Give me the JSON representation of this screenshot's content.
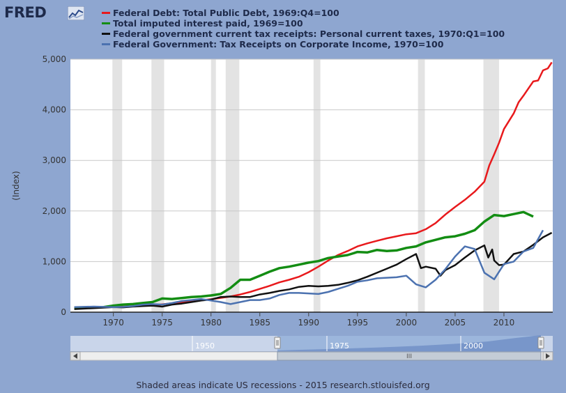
{
  "logo": {
    "text": "FRED",
    "icon": "chart-line-icon"
  },
  "footer": {
    "text": "Shaded areas indicate US recessions - 2015 research.stlouisfed.org"
  },
  "navigator": {
    "labels": [
      "1950",
      "1975",
      "2000"
    ],
    "grip": "III"
  },
  "colors": {
    "background": "#8ea6d0",
    "plot": "#ffffff",
    "recession": "#e3e3e3"
  },
  "chart_data": {
    "type": "line",
    "title": "",
    "xlabel": "",
    "ylabel": "(Index)",
    "xlim": [
      1965.6,
      2015.0
    ],
    "ylim": [
      0,
      5000
    ],
    "x_ticks": [
      1970,
      1975,
      1980,
      1985,
      1990,
      1995,
      2000,
      2005,
      2010
    ],
    "y_ticks": [
      0,
      1000,
      2000,
      3000,
      4000,
      5000
    ],
    "y_tick_labels": [
      "0",
      "1,000",
      "2,000",
      "3,000",
      "4,000",
      "5,000"
    ],
    "grid": "horizontal",
    "legend_position": "top",
    "recessions": [
      [
        1969.9,
        1970.9
      ],
      [
        1973.9,
        1975.2
      ],
      [
        1980.0,
        1980.5
      ],
      [
        1981.5,
        1982.9
      ],
      [
        1990.5,
        1991.2
      ],
      [
        2001.2,
        2001.9
      ],
      [
        2007.9,
        2009.5
      ]
    ],
    "series": [
      {
        "name": "Federal Debt: Total Public Debt, 1969:Q4=100",
        "color": "#e8191c",
        "width": 2.5,
        "points": [
          [
            1966,
            96
          ],
          [
            1968,
            98
          ],
          [
            1970,
            100
          ],
          [
            1972,
            118
          ],
          [
            1974,
            135
          ],
          [
            1976,
            175
          ],
          [
            1978,
            220
          ],
          [
            1980,
            255
          ],
          [
            1982,
            310
          ],
          [
            1983,
            350
          ],
          [
            1984,
            400
          ],
          [
            1985,
            460
          ],
          [
            1986,
            520
          ],
          [
            1987,
            590
          ],
          [
            1988,
            640
          ],
          [
            1989,
            700
          ],
          [
            1990,
            790
          ],
          [
            1991,
            900
          ],
          [
            1992,
            1020
          ],
          [
            1993,
            1130
          ],
          [
            1994,
            1210
          ],
          [
            1995,
            1300
          ],
          [
            1996,
            1360
          ],
          [
            1997,
            1410
          ],
          [
            1998,
            1460
          ],
          [
            1999,
            1500
          ],
          [
            2000,
            1540
          ],
          [
            2001,
            1560
          ],
          [
            2002,
            1640
          ],
          [
            2003,
            1760
          ],
          [
            2004,
            1930
          ],
          [
            2005,
            2080
          ],
          [
            2006,
            2220
          ],
          [
            2007,
            2380
          ],
          [
            2008,
            2580
          ],
          [
            2008.5,
            2900
          ],
          [
            2009,
            3120
          ],
          [
            2009.5,
            3350
          ],
          [
            2010,
            3620
          ],
          [
            2011,
            3930
          ],
          [
            2011.5,
            4150
          ],
          [
            2012,
            4280
          ],
          [
            2012.5,
            4420
          ],
          [
            2013,
            4560
          ],
          [
            2013.5,
            4580
          ],
          [
            2014,
            4780
          ],
          [
            2014.5,
            4820
          ],
          [
            2014.9,
            4940
          ]
        ]
      },
      {
        "name": "Total imputed interest paid, 1969=100",
        "color": "#138d13",
        "width": 3.5,
        "points": [
          [
            1966,
            85
          ],
          [
            1968,
            95
          ],
          [
            1969,
            100
          ],
          [
            1970,
            130
          ],
          [
            1971,
            150
          ],
          [
            1972,
            160
          ],
          [
            1973,
            180
          ],
          [
            1974,
            200
          ],
          [
            1975,
            270
          ],
          [
            1976,
            260
          ],
          [
            1977,
            280
          ],
          [
            1978,
            300
          ],
          [
            1979,
            310
          ],
          [
            1980,
            330
          ],
          [
            1981,
            360
          ],
          [
            1982,
            480
          ],
          [
            1983,
            640
          ],
          [
            1984,
            640
          ],
          [
            1985,
            720
          ],
          [
            1986,
            800
          ],
          [
            1987,
            870
          ],
          [
            1988,
            900
          ],
          [
            1989,
            940
          ],
          [
            1990,
            980
          ],
          [
            1991,
            1010
          ],
          [
            1992,
            1070
          ],
          [
            1993,
            1100
          ],
          [
            1994,
            1130
          ],
          [
            1995,
            1190
          ],
          [
            1996,
            1180
          ],
          [
            1997,
            1230
          ],
          [
            1998,
            1210
          ],
          [
            1999,
            1220
          ],
          [
            2000,
            1270
          ],
          [
            2001,
            1300
          ],
          [
            2002,
            1380
          ],
          [
            2003,
            1430
          ],
          [
            2004,
            1480
          ],
          [
            2005,
            1500
          ],
          [
            2006,
            1550
          ],
          [
            2007,
            1620
          ],
          [
            2008,
            1790
          ],
          [
            2009,
            1920
          ],
          [
            2010,
            1900
          ],
          [
            2011,
            1940
          ],
          [
            2012,
            1980
          ],
          [
            2013,
            1890
          ]
        ]
      },
      {
        "name": "Federal government current tax receipts: Personal current taxes, 1970:Q1=100",
        "color": "#111111",
        "width": 2.5,
        "points": [
          [
            1966,
            60
          ],
          [
            1968,
            80
          ],
          [
            1970,
            100
          ],
          [
            1971,
            95
          ],
          [
            1972,
            110
          ],
          [
            1973,
            120
          ],
          [
            1974,
            130
          ],
          [
            1975,
            110
          ],
          [
            1976,
            150
          ],
          [
            1977,
            170
          ],
          [
            1978,
            200
          ],
          [
            1979,
            230
          ],
          [
            1980,
            250
          ],
          [
            1981,
            300
          ],
          [
            1982,
            310
          ],
          [
            1983,
            300
          ],
          [
            1984,
            300
          ],
          [
            1985,
            350
          ],
          [
            1986,
            380
          ],
          [
            1987,
            420
          ],
          [
            1988,
            450
          ],
          [
            1989,
            500
          ],
          [
            1990,
            520
          ],
          [
            1991,
            510
          ],
          [
            1992,
            520
          ],
          [
            1993,
            540
          ],
          [
            1994,
            580
          ],
          [
            1995,
            630
          ],
          [
            1996,
            700
          ],
          [
            1997,
            780
          ],
          [
            1998,
            860
          ],
          [
            1999,
            940
          ],
          [
            2000,
            1050
          ],
          [
            2001,
            1150
          ],
          [
            2001.5,
            870
          ],
          [
            2002,
            900
          ],
          [
            2003,
            860
          ],
          [
            2003.5,
            720
          ],
          [
            2004,
            830
          ],
          [
            2005,
            930
          ],
          [
            2006,
            1080
          ],
          [
            2007,
            1220
          ],
          [
            2008,
            1320
          ],
          [
            2008.4,
            1080
          ],
          [
            2008.8,
            1240
          ],
          [
            2009,
            1020
          ],
          [
            2009.5,
            930
          ],
          [
            2010,
            940
          ],
          [
            2011,
            1150
          ],
          [
            2012,
            1200
          ],
          [
            2013,
            1330
          ],
          [
            2014,
            1480
          ],
          [
            2014.9,
            1570
          ]
        ]
      },
      {
        "name": "Federal Government: Tax Receipts on Corporate Income, 1970=100",
        "color": "#4c72b0",
        "width": 2.5,
        "points": [
          [
            1966,
            100
          ],
          [
            1968,
            110
          ],
          [
            1970,
            100
          ],
          [
            1971,
            105
          ],
          [
            1972,
            120
          ],
          [
            1973,
            150
          ],
          [
            1974,
            160
          ],
          [
            1975,
            150
          ],
          [
            1976,
            180
          ],
          [
            1977,
            220
          ],
          [
            1978,
            240
          ],
          [
            1979,
            260
          ],
          [
            1980,
            230
          ],
          [
            1981,
            200
          ],
          [
            1982,
            160
          ],
          [
            1983,
            200
          ],
          [
            1984,
            240
          ],
          [
            1985,
            240
          ],
          [
            1986,
            270
          ],
          [
            1987,
            340
          ],
          [
            1988,
            380
          ],
          [
            1989,
            380
          ],
          [
            1990,
            370
          ],
          [
            1991,
            360
          ],
          [
            1992,
            400
          ],
          [
            1993,
            460
          ],
          [
            1994,
            520
          ],
          [
            1995,
            600
          ],
          [
            1996,
            630
          ],
          [
            1997,
            670
          ],
          [
            1998,
            680
          ],
          [
            1999,
            690
          ],
          [
            2000,
            720
          ],
          [
            2001,
            550
          ],
          [
            2002,
            490
          ],
          [
            2003,
            640
          ],
          [
            2004,
            850
          ],
          [
            2005,
            1100
          ],
          [
            2006,
            1300
          ],
          [
            2007,
            1250
          ],
          [
            2008,
            780
          ],
          [
            2009,
            650
          ],
          [
            2010,
            950
          ],
          [
            2011,
            1000
          ],
          [
            2012,
            1200
          ],
          [
            2013,
            1270
          ],
          [
            2014,
            1620
          ]
        ]
      }
    ]
  }
}
